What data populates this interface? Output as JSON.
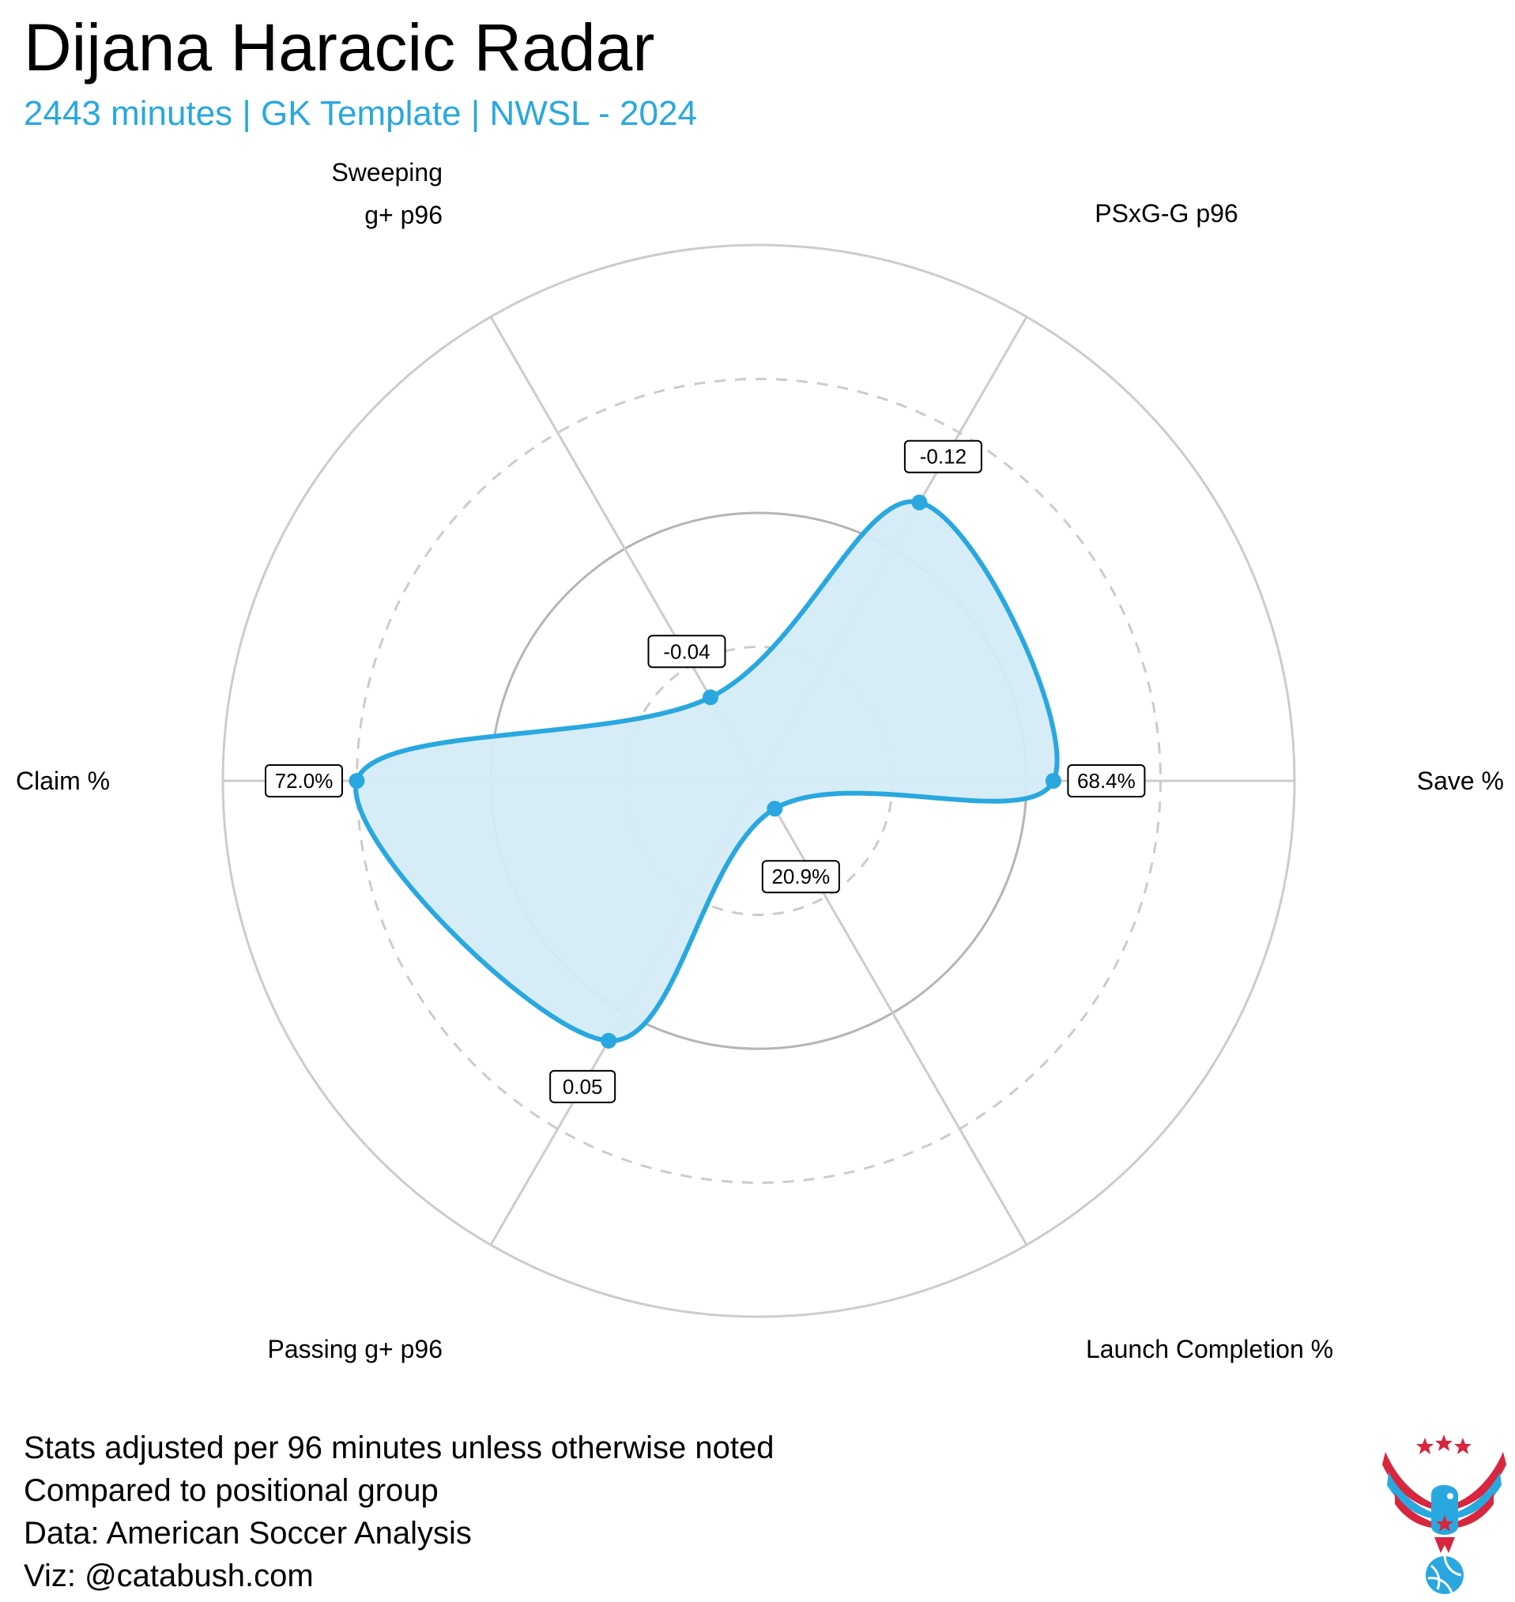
{
  "title": "Dijana Haracic Radar",
  "subtitle": "2443 minutes | GK Template | NWSL - 2024",
  "notes": [
    "Stats adjusted per 96 minutes unless otherwise noted",
    "Compared to positional group",
    "Data: American Soccer Analysis",
    "Viz: @catabush.com"
  ],
  "colors": {
    "series": "#29a8df",
    "fill": "#d4ebf7",
    "grid": "#cccccc",
    "grid_mid": "#b5b5b5"
  },
  "logo": {
    "icon": "eagle-soccer-ball-logo"
  },
  "chart_data": {
    "type": "radar",
    "axes": [
      {
        "name": "Save %",
        "label_lines": [
          "Save %"
        ],
        "percentile": 0.55,
        "label": "68.4%"
      },
      {
        "name": "PSxG-G p96",
        "label_lines": [
          "PSxG-G p96"
        ],
        "percentile": 0.6,
        "label": "-0.12"
      },
      {
        "name": "Sweeping g+ p96",
        "label_lines": [
          "Sweeping",
          "g+ p96"
        ],
        "percentile": 0.18,
        "label": "-0.04"
      },
      {
        "name": "Claim %",
        "label_lines": [
          "Claim %"
        ],
        "percentile": 0.75,
        "label": "72.0%"
      },
      {
        "name": "Passing g+ p96",
        "label_lines": [
          "Passing g+ p96"
        ],
        "percentile": 0.56,
        "label": "0.05"
      },
      {
        "name": "Launch Completion %",
        "label_lines": [
          "Launch Completion %"
        ],
        "percentile": 0.06,
        "label": "20.9%"
      }
    ],
    "rings": [
      0.25,
      0.5,
      0.75,
      1.0
    ],
    "dashed_rings": [
      0.25,
      0.75
    ],
    "grid": true,
    "legend": "none"
  }
}
